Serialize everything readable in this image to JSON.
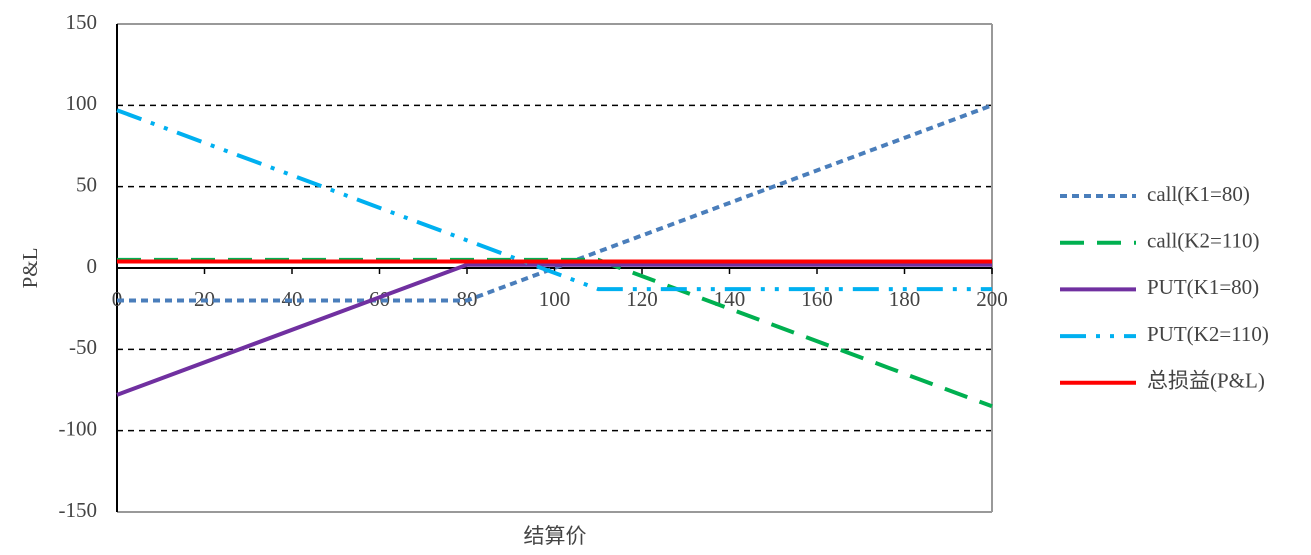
{
  "chart_data": {
    "type": "line",
    "x_label": "结算价",
    "y_label": "P&L",
    "x": [
      0,
      80,
      110,
      200
    ],
    "series": [
      {
        "name": "call(K1=80)",
        "color": "#4a7ebb",
        "values": [
          -20,
          -20,
          10,
          100
        ]
      },
      {
        "name": "call(K2=110)",
        "color": "#00b050",
        "values": [
          5,
          5,
          5,
          -85
        ]
      },
      {
        "name": "PUT(K1=80)",
        "color": "#7030a0",
        "values": [
          -78,
          2,
          2,
          2
        ]
      },
      {
        "name": "PUT(K2=110)",
        "color": "#00b0f0",
        "values": [
          97,
          17,
          -13,
          -13
        ]
      },
      {
        "name": "总损益(P&L)",
        "color": "#ff0000",
        "values": [
          4,
          4,
          4,
          4
        ]
      }
    ],
    "xlim": [
      0,
      200
    ],
    "xticks": [
      0,
      20,
      40,
      60,
      80,
      100,
      120,
      140,
      160,
      180,
      200
    ],
    "ylim": [
      -150,
      150
    ],
    "yticks": [
      -150,
      -100,
      -50,
      0,
      50,
      100,
      150
    ],
    "grid": true,
    "legend": "right"
  }
}
